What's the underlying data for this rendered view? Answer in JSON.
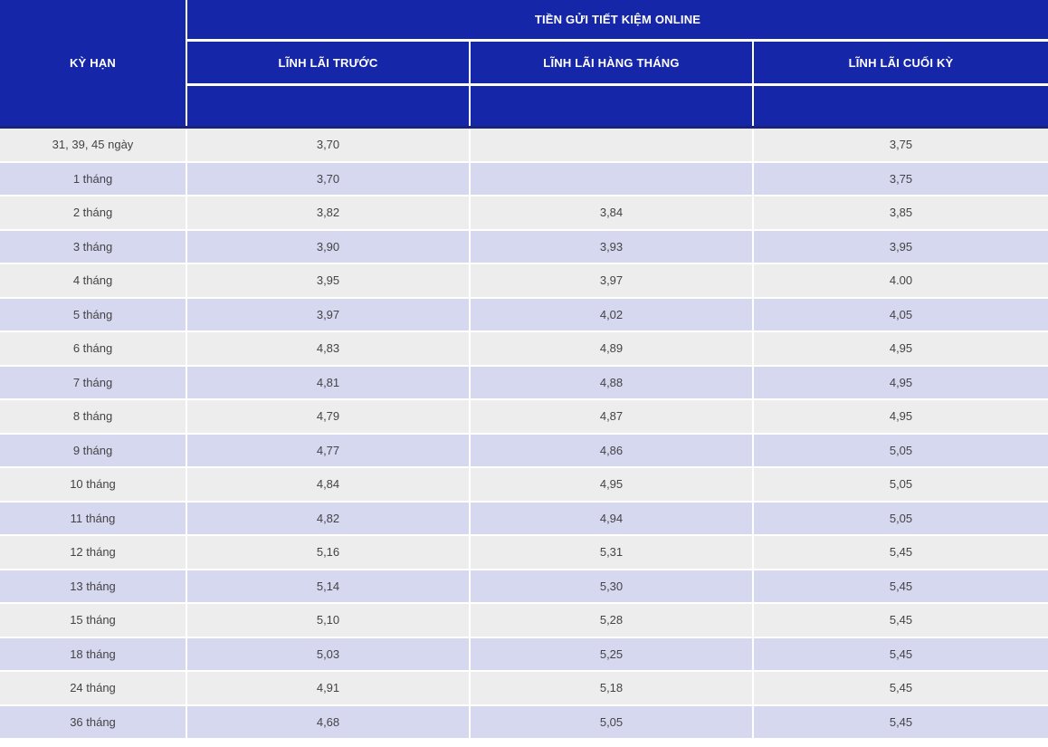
{
  "chart_data": {
    "type": "table",
    "title": "TIỀN GỬI TIẾT KIỆM ONLINE",
    "columns": [
      "KỲ HẠN",
      "LĨNH LÃI TRƯỚC",
      "LĨNH LÃI HÀNG THÁNG",
      "LĨNH LÃI CUỐI KỲ"
    ],
    "rows": [
      [
        "31, 39, 45 ngày",
        "3,70",
        "",
        "3,75"
      ],
      [
        "1 tháng",
        "3,70",
        "",
        "3,75"
      ],
      [
        "2 tháng",
        "3,82",
        "3,84",
        "3,85"
      ],
      [
        "3 tháng",
        "3,90",
        "3,93",
        "3,95"
      ],
      [
        "4 tháng",
        "3,95",
        "3,97",
        "4.00"
      ],
      [
        "5 tháng",
        "3,97",
        "4,02",
        "4,05"
      ],
      [
        "6 tháng",
        "4,83",
        "4,89",
        "4,95"
      ],
      [
        "7 tháng",
        "4,81",
        "4,88",
        "4,95"
      ],
      [
        "8 tháng",
        "4,79",
        "4,87",
        "4,95"
      ],
      [
        "9 tháng",
        "4,77",
        "4,86",
        "5,05"
      ],
      [
        "10 tháng",
        "4,84",
        "4,95",
        "5,05"
      ],
      [
        "11 tháng",
        "4,82",
        "4,94",
        "5,05"
      ],
      [
        "12 tháng",
        "5,16",
        "5,31",
        "5,45"
      ],
      [
        "13 tháng",
        "5,14",
        "5,30",
        "5,45"
      ],
      [
        "15 tháng",
        "5,10",
        "5,28",
        "5,45"
      ],
      [
        "18 tháng",
        "5,03",
        "5,25",
        "5,45"
      ],
      [
        "24 tháng",
        "4,91",
        "5,18",
        "5,45"
      ],
      [
        "36 tháng",
        "4,68",
        "5,05",
        "5,45"
      ]
    ],
    "layout": {
      "legend": "none",
      "grid": "white 2px separators between cells",
      "striping": "rows alternate grey then lavender starting with grey"
    }
  },
  "colors": {
    "header_bg": "#1626a8",
    "header_border": "#1b2374",
    "row_even": "#ededee",
    "row_odd": "#d6d8ef",
    "cell_text": "#444446",
    "header_text": "#ffffff",
    "gap_color": "#ffffff"
  }
}
